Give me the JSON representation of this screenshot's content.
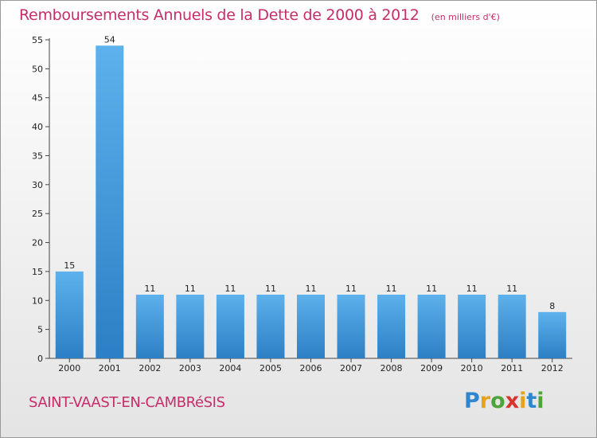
{
  "chart_data": {
    "type": "bar",
    "title": "Remboursements Annuels de la Dette de 2000 à 2012",
    "subtitle": "(en milliers d'€)",
    "categories": [
      "2000",
      "2001",
      "2002",
      "2003",
      "2004",
      "2005",
      "2006",
      "2007",
      "2008",
      "2009",
      "2010",
      "2011",
      "2012"
    ],
    "values": [
      15,
      54,
      11,
      11,
      11,
      11,
      11,
      11,
      11,
      11,
      11,
      11,
      8
    ],
    "ylim": [
      0,
      55
    ],
    "yticks": [
      0,
      5,
      10,
      15,
      20,
      25,
      30,
      35,
      40,
      45,
      50,
      55
    ],
    "xlabel": "",
    "ylabel": "",
    "grid": false,
    "colors": {
      "bar_light": "#5db1ec",
      "bar_dark": "#2c7fc4"
    }
  },
  "commune": "SAINT-VAAST-EN-CAMBRéSIS",
  "logo": {
    "letters": [
      "P",
      "r",
      "o",
      "x",
      "i",
      "t",
      "i"
    ],
    "colors": [
      "#2f86cf",
      "#e8a21a",
      "#4da43a",
      "#d9352b",
      "#e8a21a",
      "#2f86cf",
      "#4da43a"
    ]
  },
  "text_color": "#c62d6b"
}
